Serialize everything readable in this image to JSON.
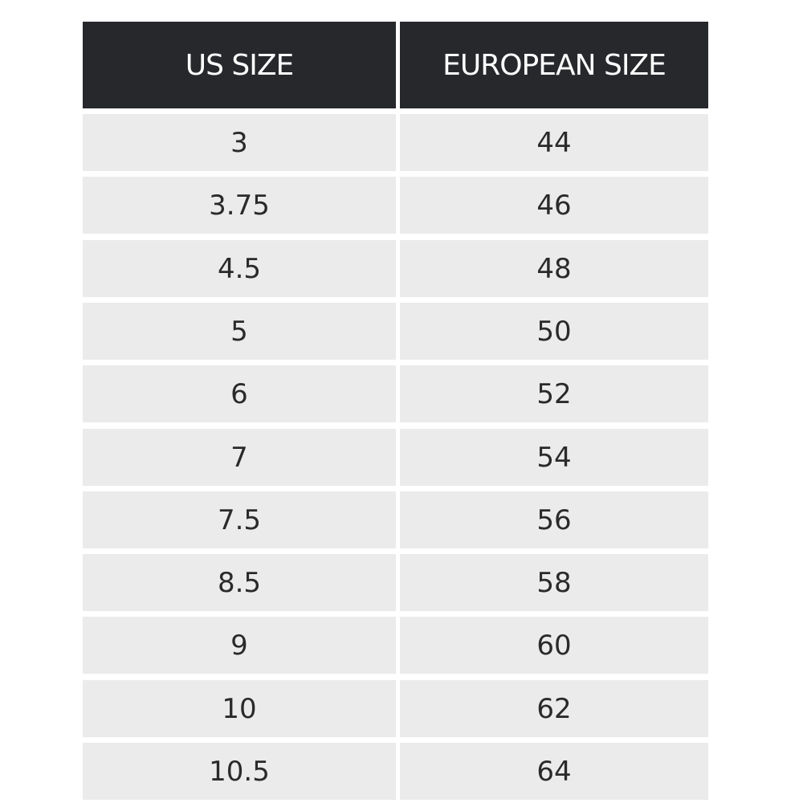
{
  "table": {
    "header": [
      "US SIZE",
      "EUROPEAN SIZE"
    ],
    "rows": [
      [
        "3",
        "44"
      ],
      [
        "3.75",
        "46"
      ],
      [
        "4.5",
        "48"
      ],
      [
        "5",
        "50"
      ],
      [
        "6",
        "52"
      ],
      [
        "7",
        "54"
      ],
      [
        "7.5",
        "56"
      ],
      [
        "8.5",
        "58"
      ],
      [
        "9",
        "60"
      ],
      [
        "10",
        "62"
      ],
      [
        "10.5",
        "64"
      ]
    ]
  }
}
